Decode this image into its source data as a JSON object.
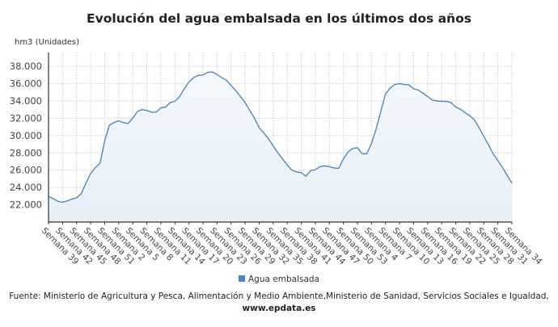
{
  "chart_data": {
    "type": "area",
    "title": "Evolución del agua embalsada en los últimos dos años",
    "ylabel": "hm3 (Unidades)",
    "xlabel": "",
    "ylim": [
      20000,
      39600
    ],
    "yticks": [
      22000,
      24000,
      26000,
      28000,
      30000,
      32000,
      34000,
      36000,
      38000
    ],
    "ytick_labels": [
      "22.000",
      "24.000",
      "26.000",
      "28.000",
      "30.000",
      "32.000",
      "34.000",
      "36.000",
      "38.000"
    ],
    "tick_labels": [
      "Semana 39",
      "Semana 42",
      "Semana 45",
      "Semana 48",
      "Semana 51",
      "Semana 2",
      "Semana 5",
      "Semana 8",
      "Semana 11",
      "Semana 14",
      "Semana 17",
      "Semana 20",
      "Semana 23",
      "Semana 26",
      "Semana 29",
      "Semana 32",
      "Semana 35",
      "Semana 38",
      "Semana 41",
      "Semana 44",
      "Semana 47",
      "Semana 50",
      "Semana 53",
      "Semana 4",
      "Semana 7",
      "Semana 10",
      "Semana 13",
      "Semana 16",
      "Semana 19",
      "Semana 22",
      "Semana 25",
      "Semana 28",
      "Semana 31",
      "Semana 34"
    ],
    "grid": true,
    "legend_placement": "bottom",
    "series": [
      {
        "name": "Agua embalsada",
        "color": "#4a86c5",
        "line_color": "#4f88b8",
        "values": [
          22970,
          22700,
          22400,
          22280,
          22450,
          22650,
          22800,
          23300,
          24500,
          25600,
          26300,
          26800,
          29400,
          31200,
          31500,
          31700,
          31500,
          31400,
          32000,
          32800,
          33000,
          32900,
          32700,
          32700,
          33200,
          33300,
          33800,
          33950,
          34500,
          35400,
          36200,
          36700,
          36950,
          37000,
          37300,
          37350,
          37050,
          36700,
          36400,
          35800,
          35200,
          34500,
          33800,
          32900,
          32000,
          30900,
          30300,
          29600,
          28800,
          28000,
          27300,
          26600,
          26000,
          25800,
          25700,
          25300,
          25950,
          26050,
          26400,
          26500,
          26400,
          26250,
          26200,
          27300,
          28100,
          28500,
          28600,
          27900,
          27900,
          29100,
          30800,
          32800,
          34800,
          35500,
          35900,
          36000,
          35900,
          35850,
          35400,
          35250,
          34900,
          34500,
          34100,
          34000,
          33950,
          33950,
          33800,
          33300,
          33050,
          32650,
          32300,
          31800,
          30900,
          29900,
          28900,
          27900,
          27100,
          26300,
          25400,
          24500
        ]
      }
    ]
  },
  "source": {
    "text": "Fuente: Ministerio de Agricultura y Pesca, Alimentación y Medio Ambiente,Ministerio de Sanidad, Servicios Sociales e Igualdad,",
    "web": "www.epdata.es"
  }
}
